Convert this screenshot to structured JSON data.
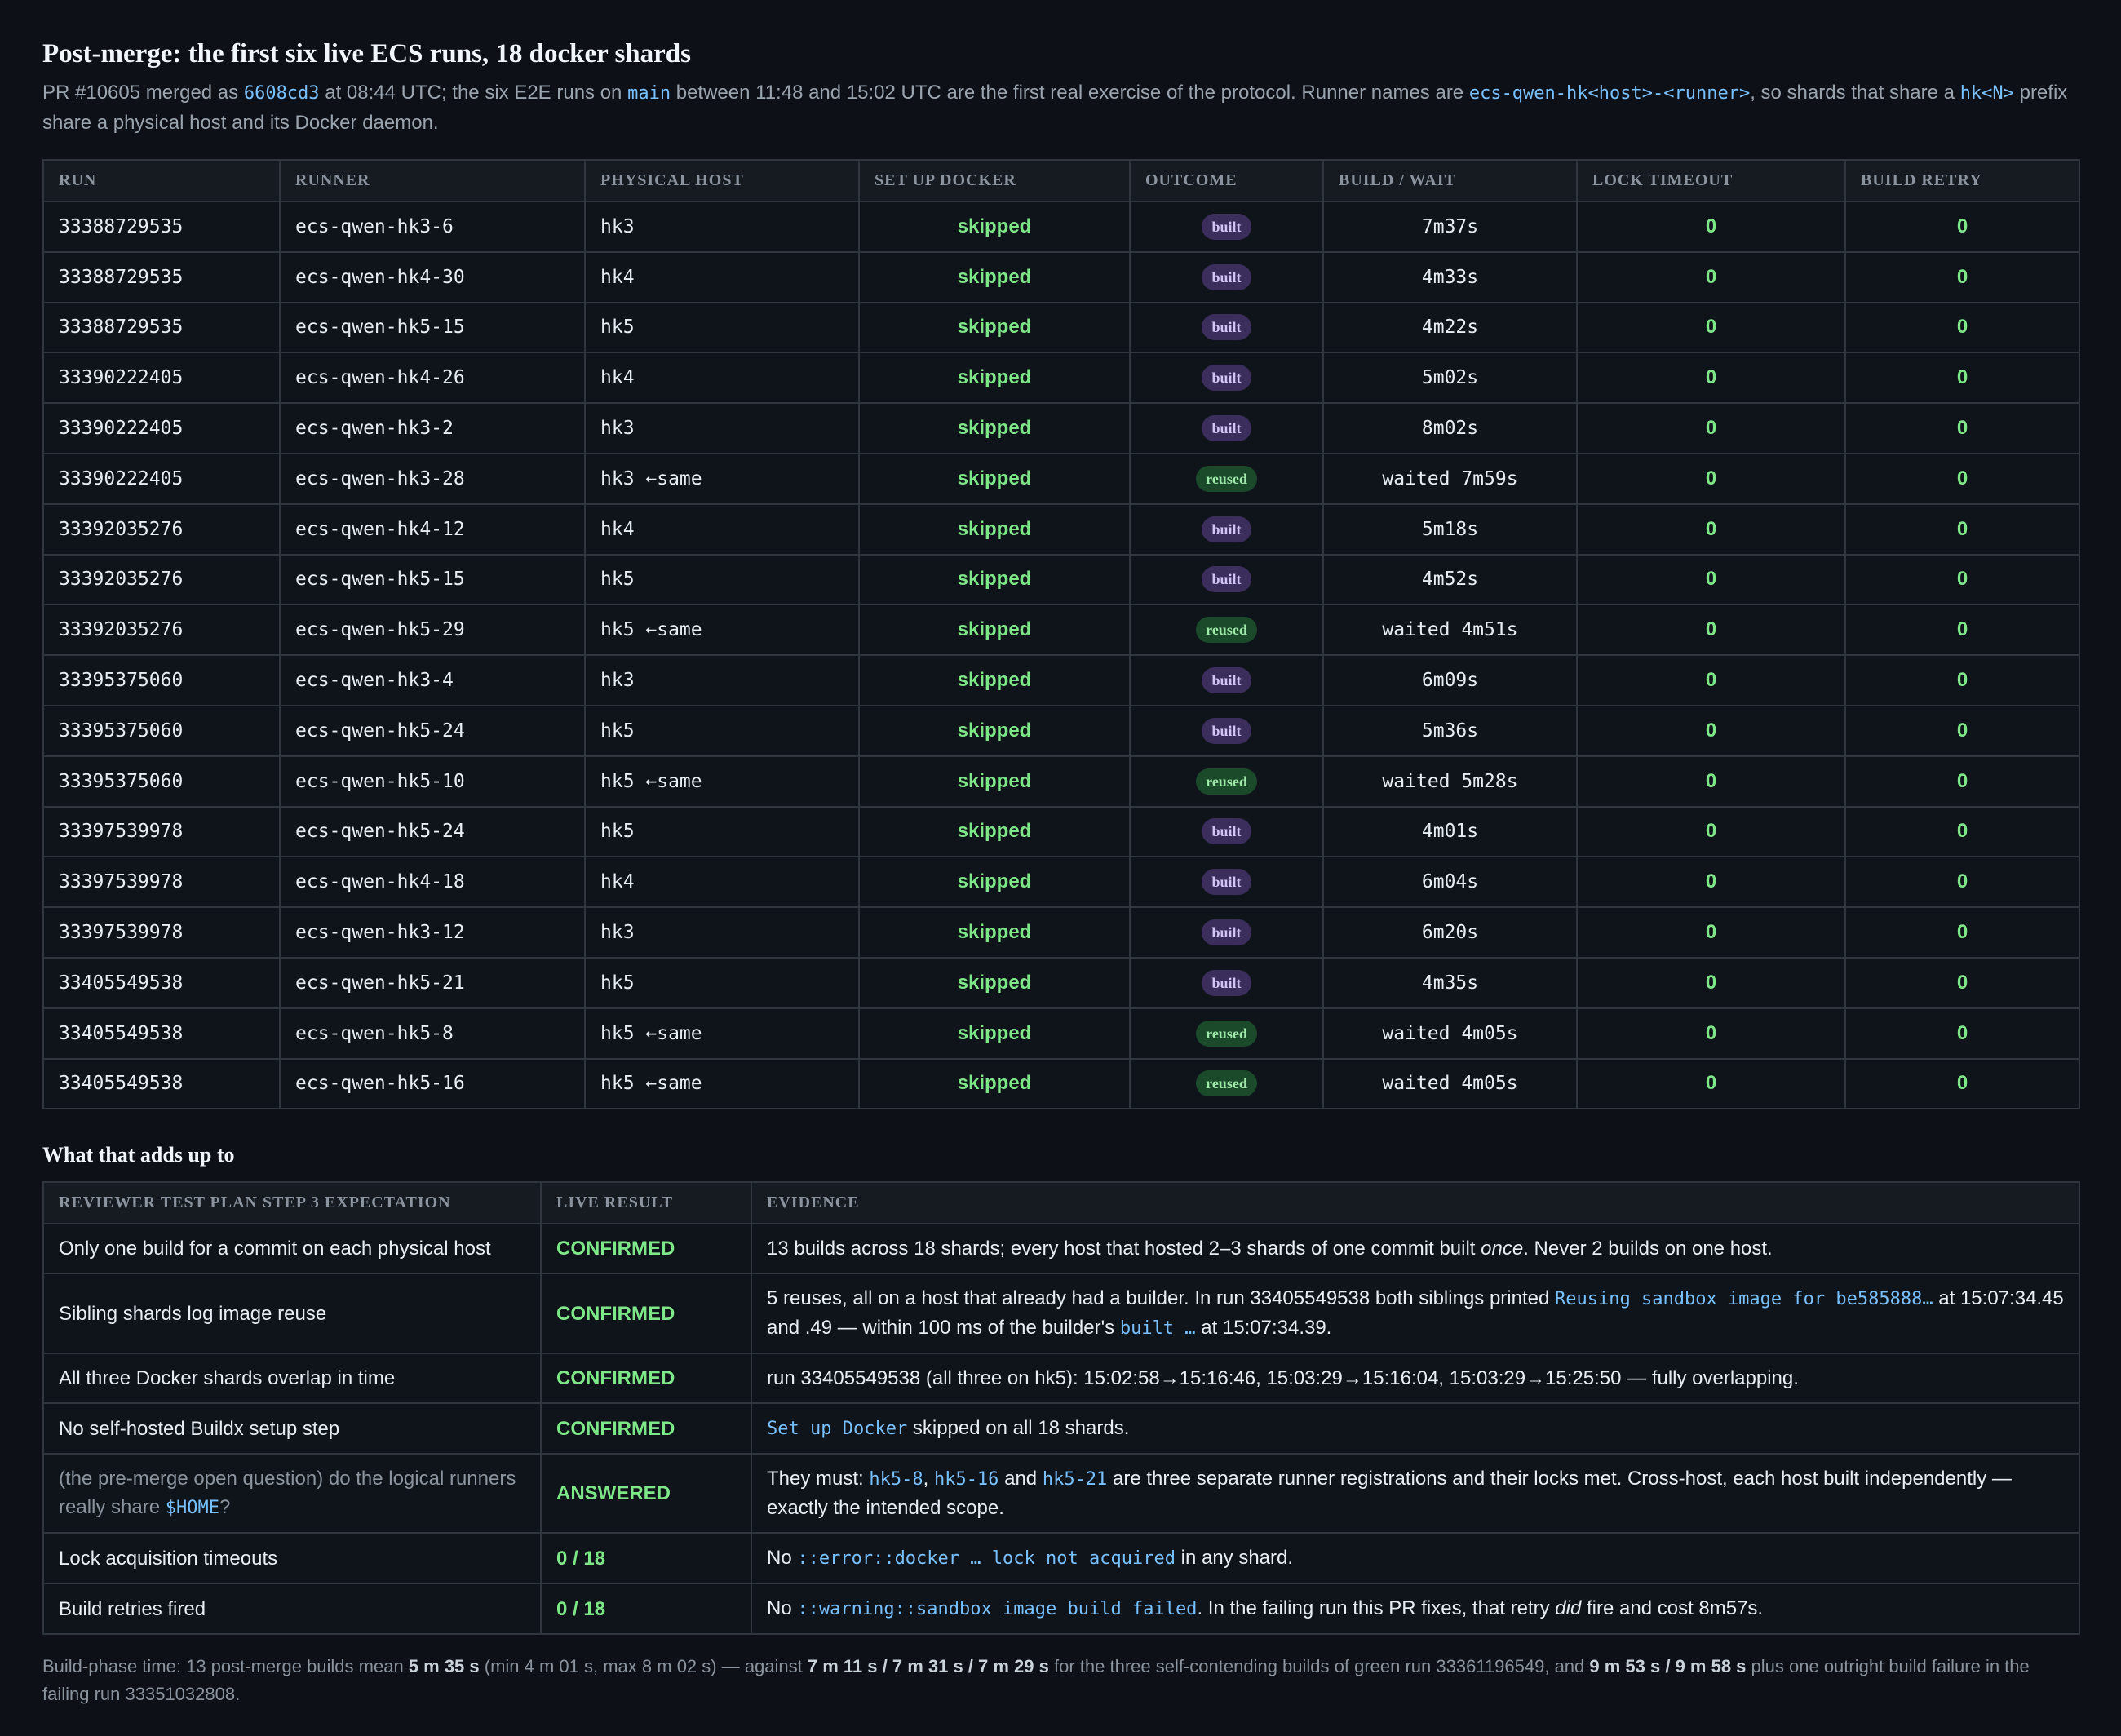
{
  "title": "Post-merge: the first six live ECS runs, 18 docker shards",
  "intro": {
    "t1": "PR #10605 merged as ",
    "commit": "6608cd3",
    "t2": " at 08:44 UTC; the six E2E runs on ",
    "branch": "main",
    "t3": " between 11:48 and 15:02 UTC are the first real exercise of the protocol. Runner names are ",
    "pattern": "ecs-qwen-hk<host>-<runner>",
    "t4": ", so shards that share a ",
    "prefix": "hk<N>",
    "t5": " prefix share a physical host and its Docker daemon."
  },
  "runs_table": {
    "headers": [
      "RUN",
      "RUNNER",
      "PHYSICAL HOST",
      "SET UP DOCKER",
      "OUTCOME",
      "BUILD / WAIT",
      "LOCK TIMEOUT",
      "BUILD RETRY"
    ],
    "rows": [
      {
        "run": "33388729535",
        "runner": "ecs-qwen-hk3-6",
        "host": "hk3",
        "setup": "skipped",
        "outcome": "built",
        "time": "7m37s",
        "lock": "0",
        "retry": "0"
      },
      {
        "run": "33388729535",
        "runner": "ecs-qwen-hk4-30",
        "host": "hk4",
        "setup": "skipped",
        "outcome": "built",
        "time": "4m33s",
        "lock": "0",
        "retry": "0"
      },
      {
        "run": "33388729535",
        "runner": "ecs-qwen-hk5-15",
        "host": "hk5",
        "setup": "skipped",
        "outcome": "built",
        "time": "4m22s",
        "lock": "0",
        "retry": "0"
      },
      {
        "run": "33390222405",
        "runner": "ecs-qwen-hk4-26",
        "host": "hk4",
        "setup": "skipped",
        "outcome": "built",
        "time": "5m02s",
        "lock": "0",
        "retry": "0"
      },
      {
        "run": "33390222405",
        "runner": "ecs-qwen-hk3-2",
        "host": "hk3",
        "setup": "skipped",
        "outcome": "built",
        "time": "8m02s",
        "lock": "0",
        "retry": "0"
      },
      {
        "run": "33390222405",
        "runner": "ecs-qwen-hk3-28",
        "host": "hk3 ←same",
        "setup": "skipped",
        "outcome": "reused",
        "time": "waited 7m59s",
        "lock": "0",
        "retry": "0"
      },
      {
        "run": "33392035276",
        "runner": "ecs-qwen-hk4-12",
        "host": "hk4",
        "setup": "skipped",
        "outcome": "built",
        "time": "5m18s",
        "lock": "0",
        "retry": "0"
      },
      {
        "run": "33392035276",
        "runner": "ecs-qwen-hk5-15",
        "host": "hk5",
        "setup": "skipped",
        "outcome": "built",
        "time": "4m52s",
        "lock": "0",
        "retry": "0"
      },
      {
        "run": "33392035276",
        "runner": "ecs-qwen-hk5-29",
        "host": "hk5 ←same",
        "setup": "skipped",
        "outcome": "reused",
        "time": "waited 4m51s",
        "lock": "0",
        "retry": "0"
      },
      {
        "run": "33395375060",
        "runner": "ecs-qwen-hk3-4",
        "host": "hk3",
        "setup": "skipped",
        "outcome": "built",
        "time": "6m09s",
        "lock": "0",
        "retry": "0"
      },
      {
        "run": "33395375060",
        "runner": "ecs-qwen-hk5-24",
        "host": "hk5",
        "setup": "skipped",
        "outcome": "built",
        "time": "5m36s",
        "lock": "0",
        "retry": "0"
      },
      {
        "run": "33395375060",
        "runner": "ecs-qwen-hk5-10",
        "host": "hk5 ←same",
        "setup": "skipped",
        "outcome": "reused",
        "time": "waited 5m28s",
        "lock": "0",
        "retry": "0"
      },
      {
        "run": "33397539978",
        "runner": "ecs-qwen-hk5-24",
        "host": "hk5",
        "setup": "skipped",
        "outcome": "built",
        "time": "4m01s",
        "lock": "0",
        "retry": "0"
      },
      {
        "run": "33397539978",
        "runner": "ecs-qwen-hk4-18",
        "host": "hk4",
        "setup": "skipped",
        "outcome": "built",
        "time": "6m04s",
        "lock": "0",
        "retry": "0"
      },
      {
        "run": "33397539978",
        "runner": "ecs-qwen-hk3-12",
        "host": "hk3",
        "setup": "skipped",
        "outcome": "built",
        "time": "6m20s",
        "lock": "0",
        "retry": "0"
      },
      {
        "run": "33405549538",
        "runner": "ecs-qwen-hk5-21",
        "host": "hk5",
        "setup": "skipped",
        "outcome": "built",
        "time": "4m35s",
        "lock": "0",
        "retry": "0"
      },
      {
        "run": "33405549538",
        "runner": "ecs-qwen-hk5-8",
        "host": "hk5 ←same",
        "setup": "skipped",
        "outcome": "reused",
        "time": "waited 4m05s",
        "lock": "0",
        "retry": "0"
      },
      {
        "run": "33405549538",
        "runner": "ecs-qwen-hk5-16",
        "host": "hk5 ←same",
        "setup": "skipped",
        "outcome": "reused",
        "time": "waited 4m05s",
        "lock": "0",
        "retry": "0"
      }
    ]
  },
  "summary": {
    "heading": "What that adds up to",
    "headers": [
      "REVIEWER TEST PLAN STEP 3 EXPECTATION",
      "LIVE RESULT",
      "EVIDENCE"
    ],
    "r1": {
      "expect": "Only one build for a commit on each physical host",
      "result": "CONFIRMED",
      "e1": "13 builds across 18 shards; every host that hosted 2–3 shards of one commit built ",
      "e_em": "once",
      "e2": ". Never 2 builds on one host."
    },
    "r2": {
      "expect": "Sibling shards log image reuse",
      "result": "CONFIRMED",
      "e1": "5 reuses, all on a host that already had a builder. In run 33405549538 both siblings printed ",
      "c1": "Reusing sandbox image for be585888…",
      "e2": " at 15:07:34.45 and .49 — within 100 ms of the builder's ",
      "c2": "built …",
      "e3": " at 15:07:34.39."
    },
    "r3": {
      "expect": "All three Docker shards overlap in time",
      "result": "CONFIRMED",
      "e1": "run 33405549538 (all three on hk5): 15:02:58→15:16:46, 15:03:29→15:16:04, 15:03:29→15:25:50 — fully overlapping."
    },
    "r4": {
      "expect": "No self-hosted Buildx setup step",
      "result": "CONFIRMED",
      "c1": "Set up Docker",
      "e1": " skipped on all 18 shards."
    },
    "r5": {
      "expect1": "(the pre-merge open question) do the logical runners really share ",
      "expect_code": "$HOME",
      "expect2": "?",
      "result": "ANSWERED",
      "e1": "They must: ",
      "c1": "hk5-8",
      "e2": ", ",
      "c2": "hk5-16",
      "e3": " and ",
      "c3": "hk5-21",
      "e4": " are three separate runner registrations and their locks met. Cross-host, each host built independently — exactly the intended scope."
    },
    "r6": {
      "expect": "Lock acquisition timeouts",
      "result": "0 / 18",
      "e1": "No ",
      "c1": "::error::docker … lock not acquired",
      "e2": " in any shard."
    },
    "r7": {
      "expect": "Build retries fired",
      "result": "0 / 18",
      "e1": "No ",
      "c1": "::warning::sandbox image build failed",
      "e2": ". In the failing run this PR fixes, that retry ",
      "e_em": "did",
      "e3": " fire and cost 8m57s."
    }
  },
  "footer": {
    "t1": "Build-phase time: 13 post-merge builds mean ",
    "b1": "5 m 35 s",
    "t2": " (min 4 m 01 s, max 8 m 02 s) — against ",
    "b2": "7 m 11 s / 7 m 31 s / 7 m 29 s",
    "t3": " for the three self-contending builds of green run 33361196549, and ",
    "b3": "9 m 53 s / 9 m 58 s",
    "t4": " plus one outright build failure in the failing run 33351032808."
  },
  "colors": {
    "accent": "#79c0ff",
    "success": "#7ee787",
    "same": "#d2a8ff",
    "background": "#0d1117"
  }
}
